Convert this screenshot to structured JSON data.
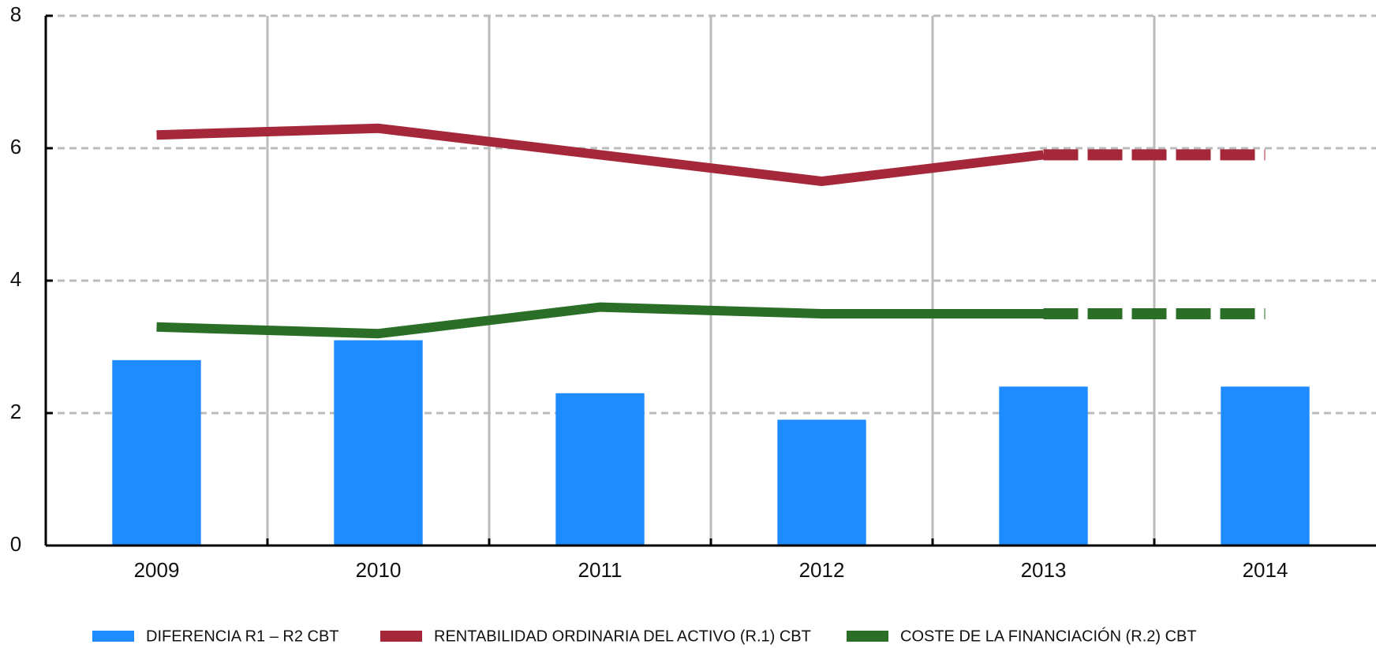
{
  "chart_data": {
    "type": "bar-line",
    "categories": [
      "2009",
      "2010",
      "2011",
      "2012",
      "2013",
      "2014"
    ],
    "series": [
      {
        "name": "DIFERENCIA R1 – R2 CBT",
        "type": "bar",
        "color": "#1e8cff",
        "values": [
          2.8,
          3.1,
          2.3,
          1.9,
          2.4,
          2.4
        ]
      },
      {
        "name": "RENTABILIDAD ORDINARIA DEL ACTIVO (R.1) CBT",
        "type": "line",
        "color": "#a5283a",
        "values": [
          6.2,
          6.3,
          5.9,
          5.5,
          5.9,
          5.9
        ],
        "dashed_last_segment": true
      },
      {
        "name": "COSTE DE LA FINANCIACIÓN (R.2) CBT",
        "type": "line",
        "color": "#2a6e28",
        "values": [
          3.3,
          3.2,
          3.6,
          3.5,
          3.5,
          3.5
        ],
        "dashed_last_segment": true
      }
    ],
    "ylim": [
      0,
      8
    ],
    "yticks": [
      0,
      2,
      4,
      6,
      8
    ],
    "grid": true,
    "legend": "bottom"
  }
}
